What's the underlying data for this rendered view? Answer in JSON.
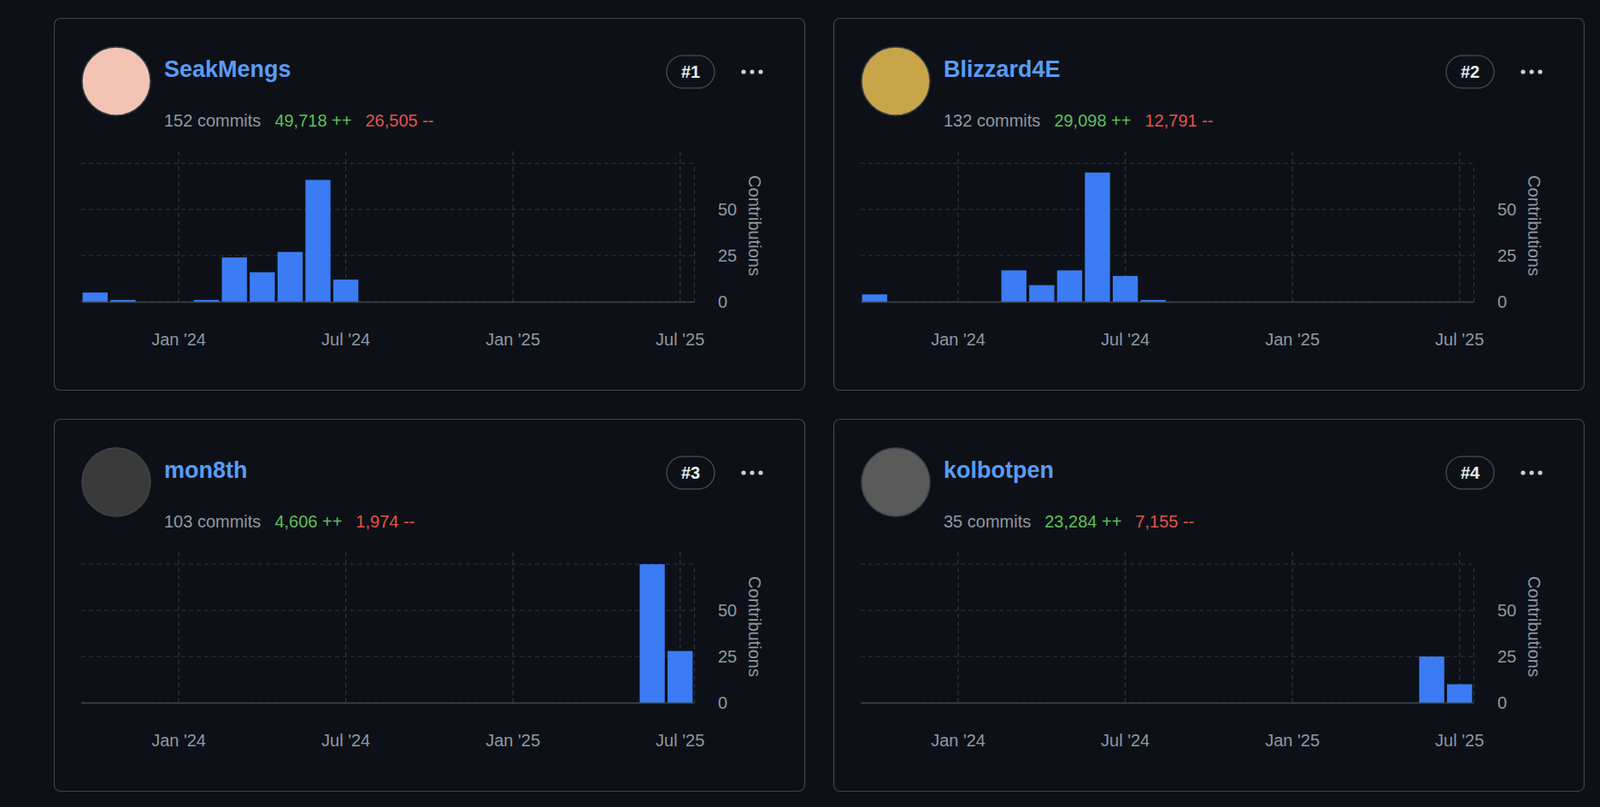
{
  "chart_data": [
    {
      "type": "bar",
      "title": "SeakMengs",
      "subtitle": "152 commits",
      "annotations": [
        "49,718 ++",
        "26,505 --",
        "#1"
      ],
      "y_label": "Contributions",
      "categories": [
        null,
        null,
        null,
        "Jan '24",
        null,
        null,
        null,
        null,
        null,
        "Jul '24",
        null,
        null,
        null,
        null,
        null,
        "Jan '25",
        null,
        null,
        null,
        null,
        null,
        "Jul '25"
      ],
      "values": [
        5,
        1,
        0,
        0,
        1,
        24,
        16,
        27,
        66,
        12,
        0,
        0,
        0,
        0,
        0,
        0,
        0,
        0,
        0,
        0,
        0,
        0
      ],
      "color": "#3b7cf4",
      "ylim": [
        0,
        75
      ],
      "yticks": [
        0,
        25,
        50
      ],
      "grid": true
    },
    {
      "type": "bar",
      "title": "Blizzard4E",
      "subtitle": "132 commits",
      "annotations": [
        "29,098 ++",
        "12,791 --",
        "#2"
      ],
      "y_label": "Contributions",
      "categories": [
        null,
        null,
        null,
        "Jan '24",
        null,
        null,
        null,
        null,
        null,
        "Jul '24",
        null,
        null,
        null,
        null,
        null,
        "Jan '25",
        null,
        null,
        null,
        null,
        null,
        "Jul '25"
      ],
      "values": [
        4,
        0,
        0,
        0,
        0,
        17,
        9,
        17,
        70,
        14,
        1,
        0,
        0,
        0,
        0,
        0,
        0,
        0,
        0,
        0,
        0,
        0
      ],
      "color": "#3b7cf4",
      "ylim": [
        0,
        75
      ],
      "yticks": [
        0,
        25,
        50
      ],
      "grid": true
    },
    {
      "type": "bar",
      "title": "mon8th",
      "subtitle": "103 commits",
      "annotations": [
        "4,606 ++",
        "1,974 --",
        "#3"
      ],
      "y_label": "Contributions",
      "categories": [
        null,
        null,
        null,
        "Jan '24",
        null,
        null,
        null,
        null,
        null,
        "Jul '24",
        null,
        null,
        null,
        null,
        null,
        "Jan '25",
        null,
        null,
        null,
        null,
        null,
        "Jul '25"
      ],
      "values": [
        0,
        0,
        0,
        0,
        0,
        0,
        0,
        0,
        0,
        0,
        0,
        0,
        0,
        0,
        0,
        0,
        0,
        0,
        0,
        0,
        75,
        28
      ],
      "color": "#3b7cf4",
      "ylim": [
        0,
        75
      ],
      "yticks": [
        0,
        25,
        50
      ],
      "grid": true
    },
    {
      "type": "bar",
      "title": "kolbotpen",
      "subtitle": "35 commits",
      "annotations": [
        "23,284 ++",
        "7,155 --",
        "#4"
      ],
      "y_label": "Contributions",
      "categories": [
        null,
        null,
        null,
        "Jan '24",
        null,
        null,
        null,
        null,
        null,
        "Jul '24",
        null,
        null,
        null,
        null,
        null,
        "Jan '25",
        null,
        null,
        null,
        null,
        null,
        "Jul '25"
      ],
      "values": [
        0,
        0,
        0,
        0,
        0,
        0,
        0,
        0,
        0,
        0,
        0,
        0,
        0,
        0,
        0,
        0,
        0,
        0,
        0,
        0,
        25,
        10
      ],
      "color": "#3b7cf4",
      "ylim": [
        0,
        75
      ],
      "yticks": [
        0,
        25,
        50
      ],
      "grid": true
    }
  ]
}
